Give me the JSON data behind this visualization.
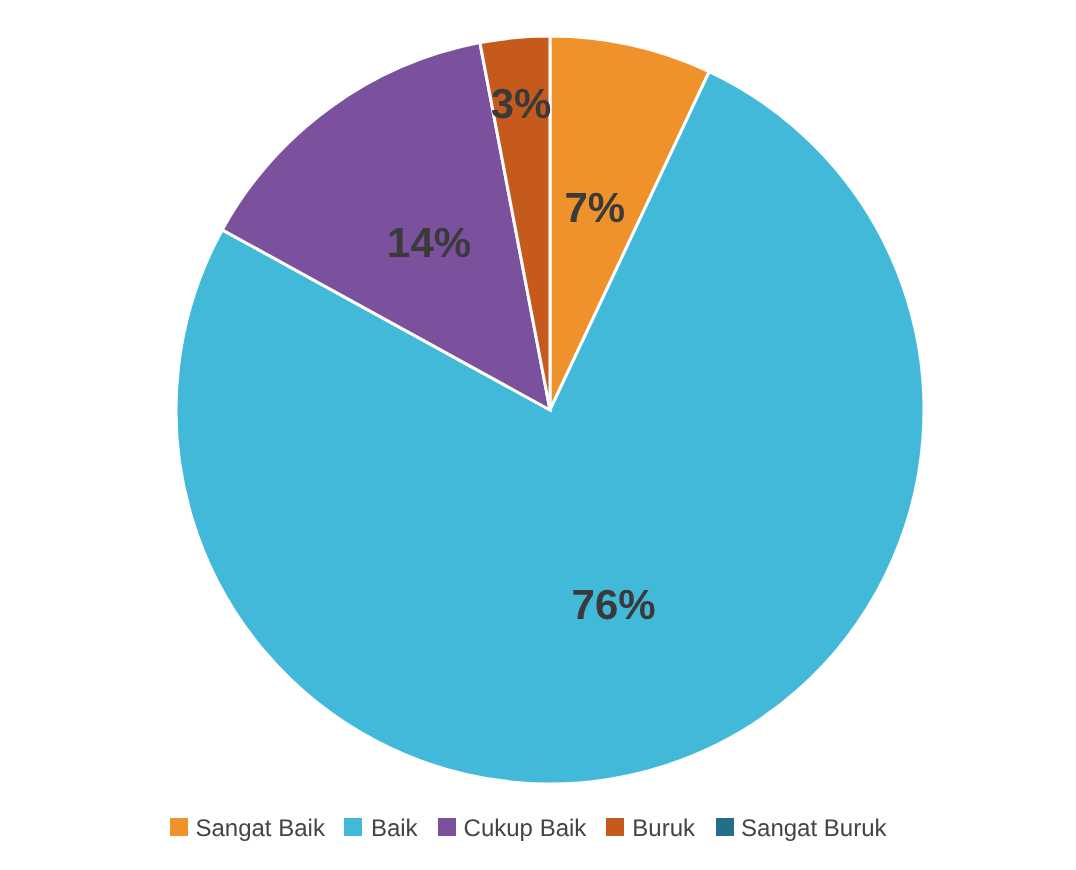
{
  "chart_data": {
    "type": "pie",
    "categories": [
      "Sangat Baik",
      "Baik",
      "Cukup Baik",
      "Buruk",
      "Sangat Buruk"
    ],
    "values": [
      7,
      76,
      14,
      3,
      0
    ],
    "colors": [
      "#f0922c",
      "#42b9d9",
      "#7b519d",
      "#c55a1c",
      "#236f8a"
    ],
    "value_labels": [
      "7%",
      "76%",
      "14%",
      "3%",
      null
    ],
    "legend": "bottom"
  }
}
